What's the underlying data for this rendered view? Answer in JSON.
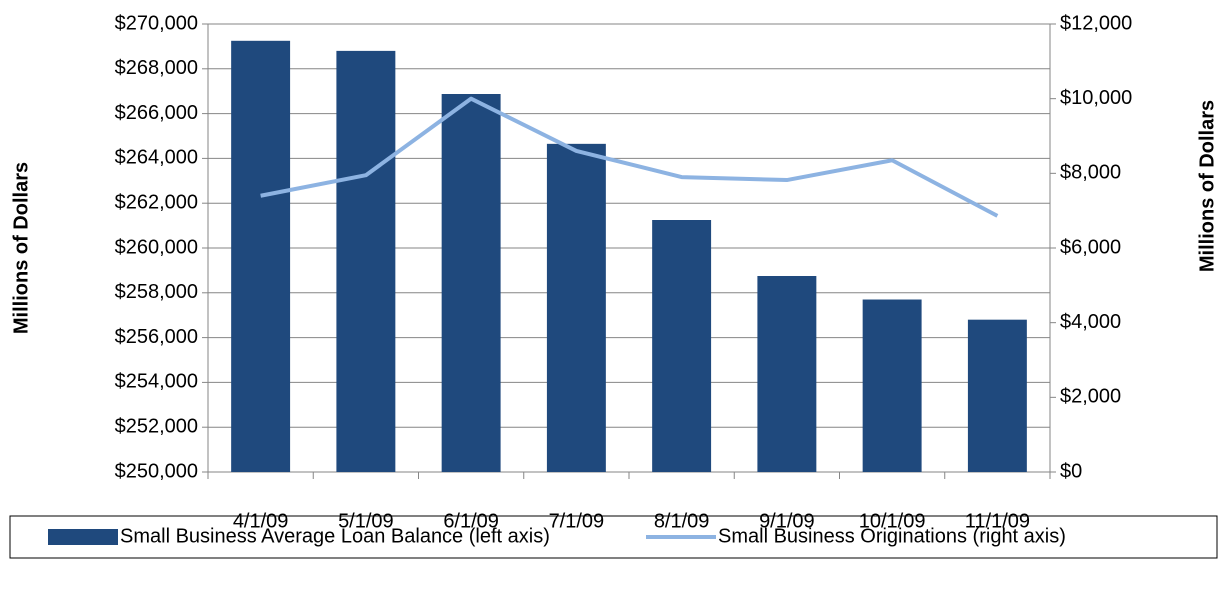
{
  "chart_data": {
    "type": "bar_line",
    "y_label": "Millions of Dollars",
    "y2_label": "Millions of Dollars",
    "categories": [
      "4/1/09",
      "5/1/09",
      "6/1/09",
      "7/1/09",
      "8/1/09",
      "9/1/09",
      "10/1/09",
      "11/1/09"
    ],
    "series": [
      {
        "name": "Small Business Average Loan Balance (left axis)",
        "type": "bar",
        "color": "#1f497d",
        "axis": "y",
        "values": [
          269250,
          268800,
          266875,
          264650,
          261250,
          258750,
          257700,
          256800
        ]
      },
      {
        "name": "Small Business Originations (right axis)",
        "type": "line",
        "color": "#8db3e2",
        "axis": "y2",
        "values": [
          7400,
          7950,
          10000,
          8600,
          7900,
          7820,
          8350,
          6860
        ]
      }
    ],
    "ylim": [
      250000,
      270000
    ],
    "yticks": [
      {
        "value": 250000,
        "label": "$250,000"
      },
      {
        "value": 252000,
        "label": "$252,000"
      },
      {
        "value": 254000,
        "label": "$254,000"
      },
      {
        "value": 256000,
        "label": "$256,000"
      },
      {
        "value": 258000,
        "label": "$258,000"
      },
      {
        "value": 260000,
        "label": "$260,000"
      },
      {
        "value": 262000,
        "label": "$262,000"
      },
      {
        "value": 264000,
        "label": "$264,000"
      },
      {
        "value": 266000,
        "label": "$266,000"
      },
      {
        "value": 268000,
        "label": "$268,000"
      },
      {
        "value": 270000,
        "label": "$270,000"
      }
    ],
    "y2lim": [
      0,
      12000
    ],
    "y2ticks": [
      {
        "value": 0,
        "label": "$0"
      },
      {
        "value": 2000,
        "label": "$2,000"
      },
      {
        "value": 4000,
        "label": "$4,000"
      },
      {
        "value": 6000,
        "label": "$6,000"
      },
      {
        "value": 8000,
        "label": "$8,000"
      },
      {
        "value": 10000,
        "label": "$10,000"
      },
      {
        "value": 12000,
        "label": "$12,000"
      }
    ],
    "grid": true,
    "legend": "bottom"
  }
}
